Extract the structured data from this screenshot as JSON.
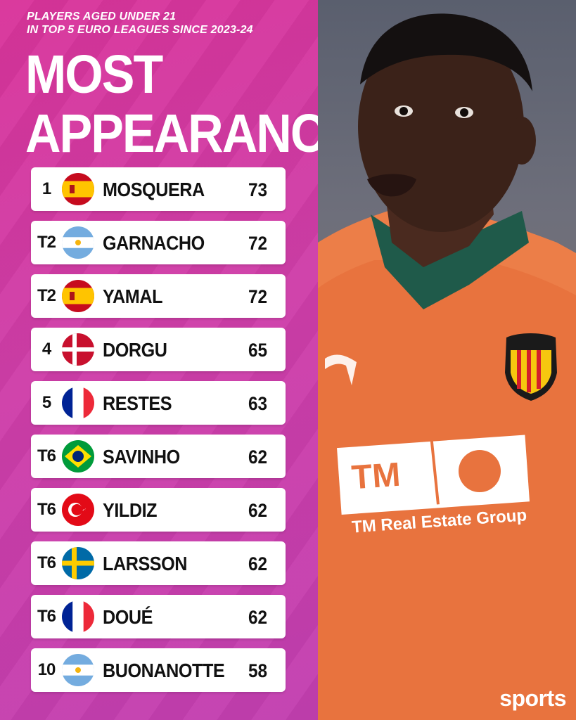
{
  "header": {
    "subtitle_line1": "PLAYERS AGED UNDER 21",
    "subtitle_line2": "IN TOP 5 EURO LEAGUES SINCE 2023-24",
    "title_line1": "MOST",
    "title_line2": "APPEARANCES"
  },
  "rows": [
    {
      "rank": "1",
      "flag": "spain-flag-icon",
      "name": "MOSQUERA",
      "value": "73"
    },
    {
      "rank": "T2",
      "flag": "argentina-flag-icon",
      "name": "GARNACHO",
      "value": "72"
    },
    {
      "rank": "T2",
      "flag": "spain-flag-icon",
      "name": "YAMAL",
      "value": "72"
    },
    {
      "rank": "4",
      "flag": "denmark-flag-icon",
      "name": "DORGU",
      "value": "65"
    },
    {
      "rank": "5",
      "flag": "france-flag-icon",
      "name": "RESTES",
      "value": "63"
    },
    {
      "rank": "T6",
      "flag": "brazil-flag-icon",
      "name": "SAVINHO",
      "value": "62"
    },
    {
      "rank": "T6",
      "flag": "turkey-flag-icon",
      "name": "YILDIZ",
      "value": "62"
    },
    {
      "rank": "T6",
      "flag": "sweden-flag-icon",
      "name": "LARSSON",
      "value": "62"
    },
    {
      "rank": "T6",
      "flag": "france-flag-icon",
      "name": "DOUÉ",
      "value": "62"
    },
    {
      "rank": "10",
      "flag": "argentina-flag-icon",
      "name": "BUONANOTTE",
      "value": "58"
    }
  ],
  "photo": {
    "sponsor_logo": "TM",
    "sponsor_name": "TM Real Estate Group",
    "crest": "valencia-crest-icon"
  },
  "brand": "sports",
  "colors": {
    "panel": "#d9349a",
    "row_bg": "#ffffff",
    "shirt": "#e8733e"
  }
}
